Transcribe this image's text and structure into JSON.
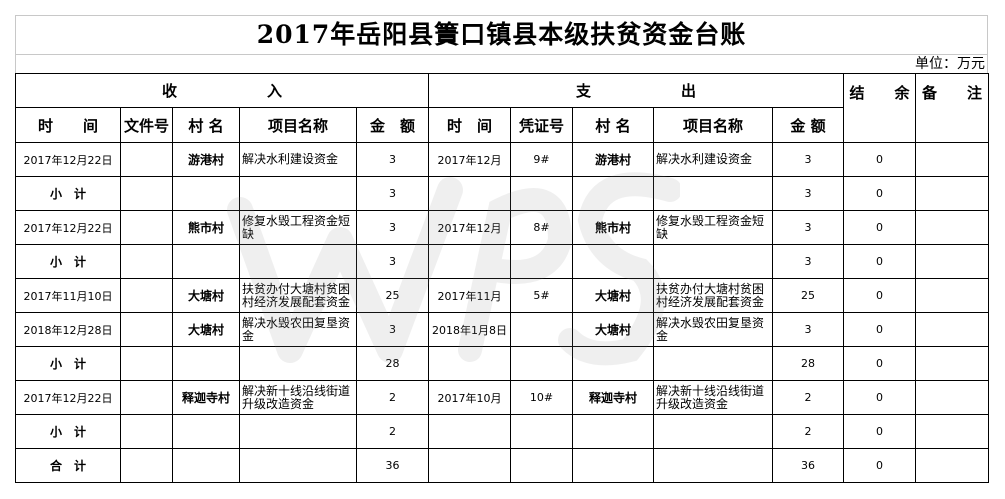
{
  "title": "2017年岳阳县簀口镇县本级扶贫资金台账",
  "unit": "单位：万元",
  "groups": {
    "income": "收　　　　　　入",
    "expense": "支　　　　　　出",
    "balance": "结　　余",
    "remark": "备　　注"
  },
  "headers": [
    "时　　间",
    "文件号",
    "村 名",
    "项目名称",
    "金　额",
    "时　间",
    "凭证号",
    "村 名",
    "项目名称",
    "金 额"
  ],
  "rows": [
    {
      "in_date": "2017年12月22日",
      "in_doc": "",
      "in_village": "游港村",
      "in_project": "解决水利建设资金",
      "in_amount": "3",
      "out_date": "2017年12月",
      "out_voucher": "9#",
      "out_village": "游港村",
      "out_project": "解决水利建设资金",
      "out_amount": "3",
      "balance": "0",
      "remark": ""
    },
    {
      "in_date": "小　计",
      "subtotal": true,
      "in_doc": "",
      "in_village": "",
      "in_project": "",
      "in_amount": "3",
      "out_date": "",
      "out_voucher": "",
      "out_village": "",
      "out_project": "",
      "out_amount": "3",
      "balance": "0",
      "remark": ""
    },
    {
      "in_date": "2017年12月22日",
      "in_doc": "",
      "in_village": "熊市村",
      "in_project": "修复水毁工程资金短缺",
      "in_amount": "3",
      "out_date": "2017年12月",
      "out_voucher": "8#",
      "out_village": "熊市村",
      "out_project": "修复水毁工程资金短缺",
      "out_amount": "3",
      "balance": "0",
      "remark": ""
    },
    {
      "in_date": "小　计",
      "subtotal": true,
      "in_doc": "",
      "in_village": "",
      "in_project": "",
      "in_amount": "3",
      "out_date": "",
      "out_voucher": "",
      "out_village": "",
      "out_project": "",
      "out_amount": "3",
      "balance": "0",
      "remark": ""
    },
    {
      "in_date": "2017年11月10日",
      "in_doc": "",
      "in_village": "大塘村",
      "in_project": "扶贫办付大塘村贫困村经济发展配套资金",
      "in_amount": "25",
      "out_date": "2017年11月",
      "out_voucher": "5#",
      "out_village": "大塘村",
      "out_project": "扶贫办付大塘村贫困村经济发展配套资金",
      "out_amount": "25",
      "balance": "0",
      "remark": ""
    },
    {
      "in_date": "2018年12月28日",
      "in_doc": "",
      "in_village": "大塘村",
      "in_project": "解决水毁农田复垦资金",
      "in_amount": "3",
      "out_date": "2018年1月8日",
      "out_voucher": "",
      "out_village": "大塘村",
      "out_project": "解决水毁农田复垦资金",
      "out_amount": "3",
      "balance": "0",
      "remark": ""
    },
    {
      "in_date": "小　计",
      "subtotal": true,
      "in_doc": "",
      "in_village": "",
      "in_project": "",
      "in_amount": "28",
      "out_date": "",
      "out_voucher": "",
      "out_village": "",
      "out_project": "",
      "out_amount": "28",
      "balance": "0",
      "remark": ""
    },
    {
      "in_date": "2017年12月22日",
      "in_doc": "",
      "in_village": "释迦寺村",
      "in_project": "解决新十线沿线街道升级改造资金",
      "in_amount": "2",
      "out_date": "2017年10月",
      "out_voucher": "10#",
      "out_village": "释迦寺村",
      "out_project": "解决新十线沿线街道升级改造资金",
      "out_amount": "2",
      "balance": "0",
      "remark": ""
    },
    {
      "in_date": "小　计",
      "subtotal": true,
      "in_doc": "",
      "in_village": "",
      "in_project": "",
      "in_amount": "2",
      "out_date": "",
      "out_voucher": "",
      "out_village": "",
      "out_project": "",
      "out_amount": "2",
      "balance": "0",
      "remark": ""
    },
    {
      "in_date": "合　计",
      "subtotal": true,
      "in_doc": "",
      "in_village": "",
      "in_project": "",
      "in_amount": "36",
      "out_date": "",
      "out_voucher": "",
      "out_village": "",
      "out_project": "",
      "out_amount": "36",
      "balance": "0",
      "remark": ""
    }
  ],
  "watermark": "WPS"
}
